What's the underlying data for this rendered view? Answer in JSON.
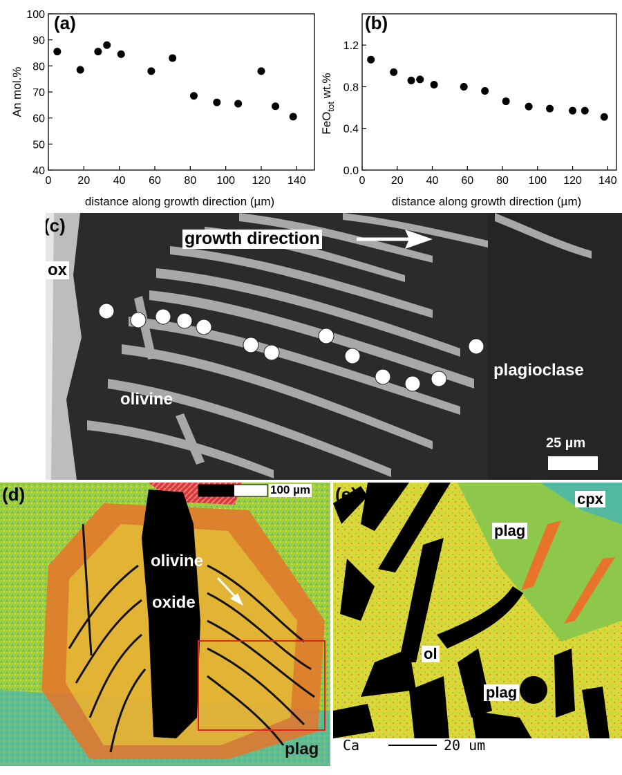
{
  "chart_data": [
    {
      "panel": "(a)",
      "type": "scatter",
      "xlabel": "distance along growth direction (µm)",
      "ylabel": "An mol.%",
      "xlim": [
        0,
        150
      ],
      "ylim": [
        40,
        100
      ],
      "xticks": [
        0,
        20,
        40,
        60,
        80,
        100,
        120,
        140
      ],
      "yticks": [
        40,
        50,
        60,
        70,
        80,
        90,
        100
      ],
      "grid": false,
      "points": [
        {
          "x": 5,
          "y": 85.5
        },
        {
          "x": 18,
          "y": 78.5
        },
        {
          "x": 28,
          "y": 85.5
        },
        {
          "x": 33,
          "y": 88
        },
        {
          "x": 41,
          "y": 84.5
        },
        {
          "x": 58,
          "y": 78
        },
        {
          "x": 70,
          "y": 83
        },
        {
          "x": 82,
          "y": 68.5
        },
        {
          "x": 95,
          "y": 66
        },
        {
          "x": 107,
          "y": 65.5
        },
        {
          "x": 120,
          "y": 78
        },
        {
          "x": 128,
          "y": 64.5
        },
        {
          "x": 138,
          "y": 60.5
        }
      ]
    },
    {
      "panel": "(b)",
      "type": "scatter",
      "xlabel": "distance along growth direction (µm)",
      "ylabel_main": "FeO",
      "ylabel_sub": "tot",
      "ylabel_tail": " wt.%",
      "xlim": [
        0,
        145
      ],
      "ylim": [
        0,
        1.5
      ],
      "xticks": [
        0,
        20,
        40,
        60,
        80,
        100,
        120,
        140
      ],
      "yticks": [
        0.0,
        0.4,
        0.8,
        1.2
      ],
      "ytick_labels": [
        "0.0",
        "0.4",
        "0.8",
        "1.2"
      ],
      "grid": false,
      "points": [
        {
          "x": 5,
          "y": 1.06
        },
        {
          "x": 18,
          "y": 0.94
        },
        {
          "x": 28,
          "y": 0.86
        },
        {
          "x": 33,
          "y": 0.87
        },
        {
          "x": 41,
          "y": 0.82
        },
        {
          "x": 58,
          "y": 0.8
        },
        {
          "x": 70,
          "y": 0.76
        },
        {
          "x": 82,
          "y": 0.66
        },
        {
          "x": 95,
          "y": 0.61
        },
        {
          "x": 107,
          "y": 0.59
        },
        {
          "x": 120,
          "y": 0.57
        },
        {
          "x": 127,
          "y": 0.57
        },
        {
          "x": 138,
          "y": 0.51
        }
      ]
    }
  ],
  "panel_c": {
    "letter": "(c)",
    "label_ox": "ox",
    "label_growth": "growth direction",
    "label_olivine": "olivine",
    "label_plagioclase": "plagioclase",
    "scale_label": "25 µm"
  },
  "panel_d": {
    "letter": "(d)",
    "label_olivine": "olivine",
    "label_oxide": "oxide",
    "label_plag": "plag",
    "scale_label": "100 µm"
  },
  "panel_e": {
    "letter": "(e)",
    "label_cpx": "cpx",
    "label_plag_top": "plag",
    "label_ol": "ol",
    "label_plag_mid": "plag",
    "label_ca": "Ca",
    "scale_label": "20 um"
  },
  "colors": {
    "marker": "#000000",
    "bse_dark": "#2b2b2b",
    "bse_light": "#a9a9a9",
    "map_green": "#9ecf3a",
    "map_yellow": "#e8dc3a",
    "map_orange": "#e8742a",
    "map_cyan": "#3ab0c4",
    "map_red_box": "#e02020"
  }
}
